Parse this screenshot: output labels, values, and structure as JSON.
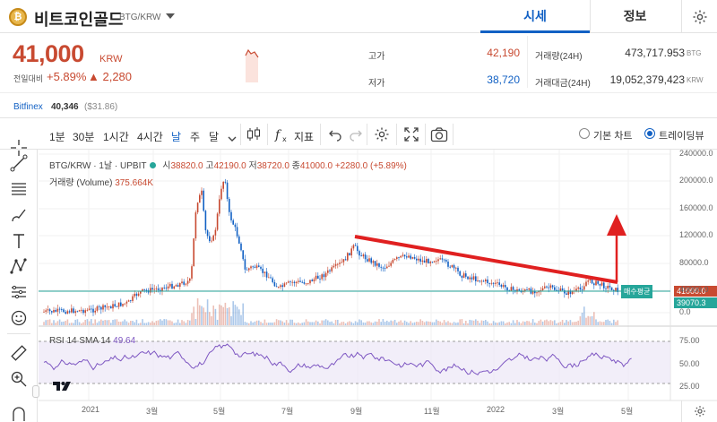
{
  "header": {
    "coin_logo_glyph": "₿",
    "coin_name": "비트코인골드",
    "pair": "BTG/KRW",
    "tabs": [
      {
        "label": "시세",
        "active": true
      },
      {
        "label": "정보",
        "active": false
      }
    ]
  },
  "price": {
    "value": "41,000",
    "unit": "KRW",
    "change_label": "전일대비",
    "change_pct": "+5.89%",
    "change_amt": "▲ 2,280"
  },
  "stats": {
    "high_label": "고가",
    "high": "42,190",
    "low_label": "저가",
    "low": "38,720",
    "vol_label": "거래량(24H)",
    "vol": "473,717.953",
    "vol_unit": "BTG",
    "amt_label": "거래대금(24H)",
    "amt": "19,052,379,423",
    "amt_unit": "KRW"
  },
  "bitfinex": {
    "label": "Bitfinex",
    "value": "40,346",
    "usd": "($31.86)"
  },
  "toolbar": {
    "intervals": [
      "1분",
      "30분",
      "1시간",
      "4시간",
      "날",
      "주",
      "달"
    ],
    "active_interval": "날",
    "indicator_label": "지표",
    "view_basic": "기본 차트",
    "view_tv": "트레이딩뷰"
  },
  "chart_legend": {
    "symbol": "BTG/KRW · 1날 · UPBIT",
    "open_label": "시",
    "open": "38820.0",
    "high_label": "고",
    "high": "42190.0",
    "low_label": "저",
    "low": "38720.0",
    "close_label": "종",
    "close": "41000.0",
    "change": "+2280.0 (+5.89%)",
    "volume_label": "거래량 (Volume)",
    "volume": "375.664K",
    "rsi_label": "RSI 14 SMA 14",
    "rsi": "49.64"
  },
  "price_axis": [
    "240000.0",
    "200000.0",
    "160000.0",
    "120000.0",
    "80000.0",
    "40000.0",
    "0.0"
  ],
  "rsi_axis": [
    "75.00",
    "50.00",
    "25.00"
  ],
  "time_axis": [
    "2021",
    "3월",
    "5월",
    "7월",
    "9월",
    "11월",
    "2022",
    "3월",
    "5월"
  ],
  "tags": {
    "buy_avg": "매수평균",
    "last": "41000.0",
    "avg": "39070.3"
  },
  "colors": {
    "up": "#c84a31",
    "down": "#1261c4",
    "accent": "#1261c4",
    "trend": "#e02020",
    "rsi": "#7e57c2",
    "avgline": "#26a69a"
  }
}
